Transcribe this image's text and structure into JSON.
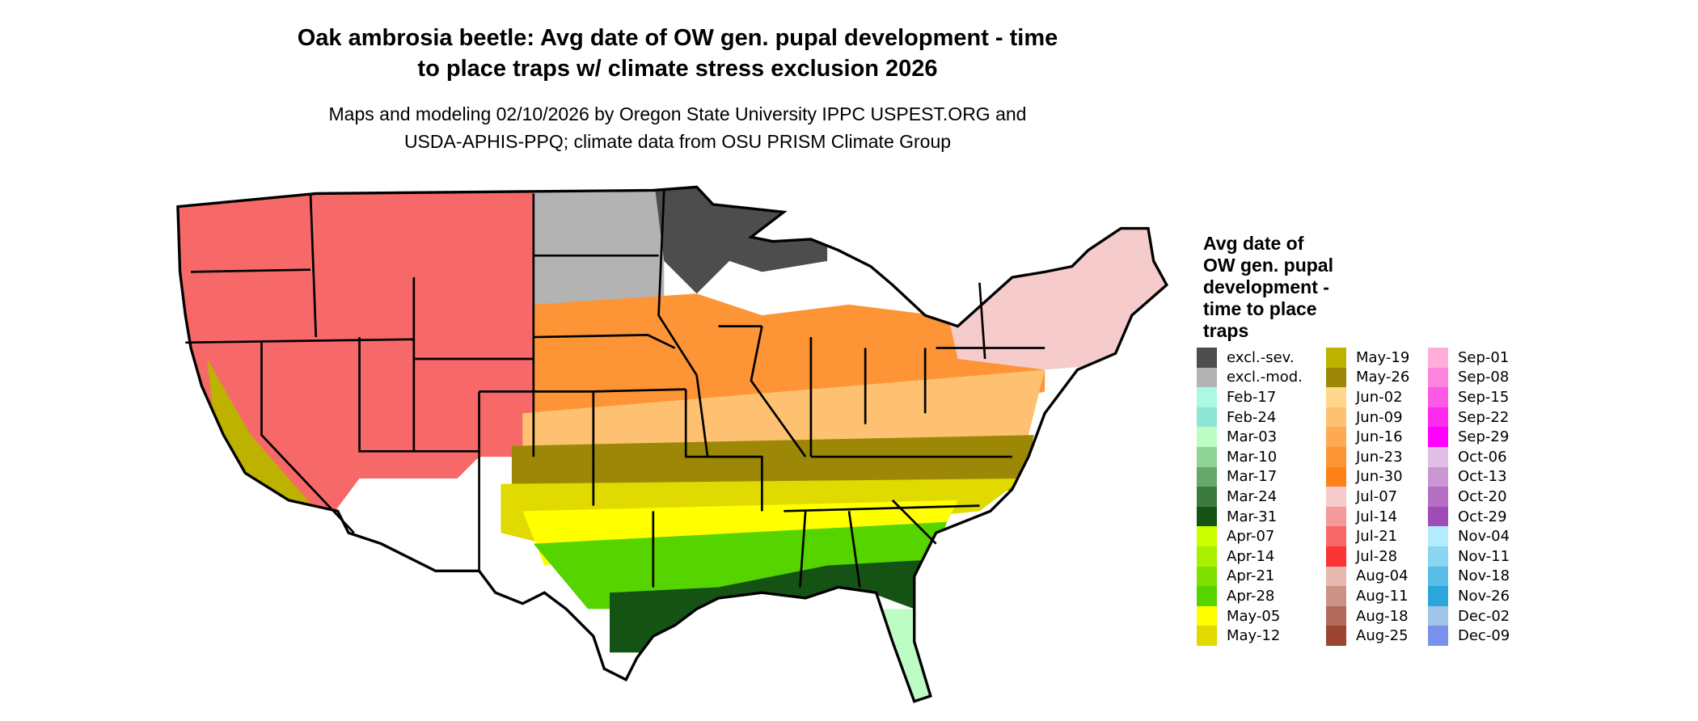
{
  "title": {
    "line1": "Oak ambrosia beetle: Avg date of OW gen. pupal development - time",
    "line2": "to place traps w/ climate stress exclusion 2026"
  },
  "subtitle": {
    "line1": "Maps and modeling 02/10/2026 by Oregon State University IPPC USPEST.ORG and",
    "line2": "USDA-APHIS-PPQ; climate data from OSU PRISM Climate Group"
  },
  "legend": {
    "title_lines": [
      "Avg date of",
      "OW gen. pupal",
      "development -",
      "time to place",
      "traps"
    ],
    "columns": [
      [
        {
          "label": "excl.-sev.",
          "color": "#4d4d4d"
        },
        {
          "label": "excl.-mod.",
          "color": "#b3b3b3"
        },
        {
          "label": "Feb-17",
          "color": "#adf8e2"
        },
        {
          "label": "Feb-24",
          "color": "#8ee6d4"
        },
        {
          "label": "Mar-03",
          "color": "#bdfdc4"
        },
        {
          "label": "Mar-10",
          "color": "#8fd397"
        },
        {
          "label": "Mar-17",
          "color": "#66a86b"
        },
        {
          "label": "Mar-24",
          "color": "#3b7b3e"
        },
        {
          "label": "Mar-31",
          "color": "#145314"
        },
        {
          "label": "Apr-07",
          "color": "#ccff00"
        },
        {
          "label": "Apr-14",
          "color": "#a8f000"
        },
        {
          "label": "Apr-21",
          "color": "#7fe000"
        },
        {
          "label": "Apr-28",
          "color": "#55d400"
        },
        {
          "label": "May-05",
          "color": "#ffff00"
        },
        {
          "label": "May-12",
          "color": "#e0da00"
        }
      ],
      [
        {
          "label": "May-19",
          "color": "#bdb200"
        },
        {
          "label": "May-26",
          "color": "#9c8806"
        },
        {
          "label": "Jun-02",
          "color": "#ffd78c"
        },
        {
          "label": "Jun-09",
          "color": "#fec171"
        },
        {
          "label": "Jun-16",
          "color": "#fdaa52"
        },
        {
          "label": "Jun-23",
          "color": "#fd9436"
        },
        {
          "label": "Jun-30",
          "color": "#fd8118"
        },
        {
          "label": "Jul-07",
          "color": "#f5cbcb"
        },
        {
          "label": "Jul-14",
          "color": "#f59a9a"
        },
        {
          "label": "Jul-21",
          "color": "#f76868"
        },
        {
          "label": "Jul-28",
          "color": "#fd3434"
        },
        {
          "label": "Aug-04",
          "color": "#e6b8ae"
        },
        {
          "label": "Aug-11",
          "color": "#cc9285"
        },
        {
          "label": "Aug-18",
          "color": "#b36b5c"
        },
        {
          "label": "Aug-25",
          "color": "#9c4533"
        }
      ],
      [
        {
          "label": "Sep-01",
          "color": "#feaed8"
        },
        {
          "label": "Sep-08",
          "color": "#fd83dc"
        },
        {
          "label": "Sep-15",
          "color": "#fe5ae6"
        },
        {
          "label": "Sep-22",
          "color": "#fe2aef"
        },
        {
          "label": "Sep-29",
          "color": "#ff00ff"
        },
        {
          "label": "Oct-06",
          "color": "#e0bee6"
        },
        {
          "label": "Oct-13",
          "color": "#cb96d3"
        },
        {
          "label": "Oct-20",
          "color": "#b570c4"
        },
        {
          "label": "Oct-29",
          "color": "#a04bb6"
        },
        {
          "label": "Nov-04",
          "color": "#b3ecfd"
        },
        {
          "label": "Nov-11",
          "color": "#8ad6f2"
        },
        {
          "label": "Nov-18",
          "color": "#5abde6"
        },
        {
          "label": "Nov-26",
          "color": "#2ba6da"
        },
        {
          "label": "Dec-02",
          "color": "#a0c4e6"
        },
        {
          "label": "Dec-09",
          "color": "#7891ea"
        }
      ]
    ]
  },
  "map_regions": [
    {
      "name": "northwest",
      "color": "#f76868"
    },
    {
      "name": "northern-plains",
      "color": "#b3b3b3"
    },
    {
      "name": "minnesota-wisconsin",
      "color": "#4d4d4d"
    },
    {
      "name": "central",
      "color": "#fd9436"
    },
    {
      "name": "midsouth",
      "color": "#fec171"
    },
    {
      "name": "south-olive",
      "color": "#9c8806"
    },
    {
      "name": "south-yellow",
      "color": "#e0da00"
    },
    {
      "name": "gulf-yellow",
      "color": "#ffff00"
    },
    {
      "name": "gulf-green",
      "color": "#55d400"
    },
    {
      "name": "gulf-dark",
      "color": "#145314"
    },
    {
      "name": "florida",
      "color": "#bdfdc4"
    },
    {
      "name": "california-valley",
      "color": "#bdb200"
    },
    {
      "name": "northeast",
      "color": "#f5cbcb"
    }
  ]
}
